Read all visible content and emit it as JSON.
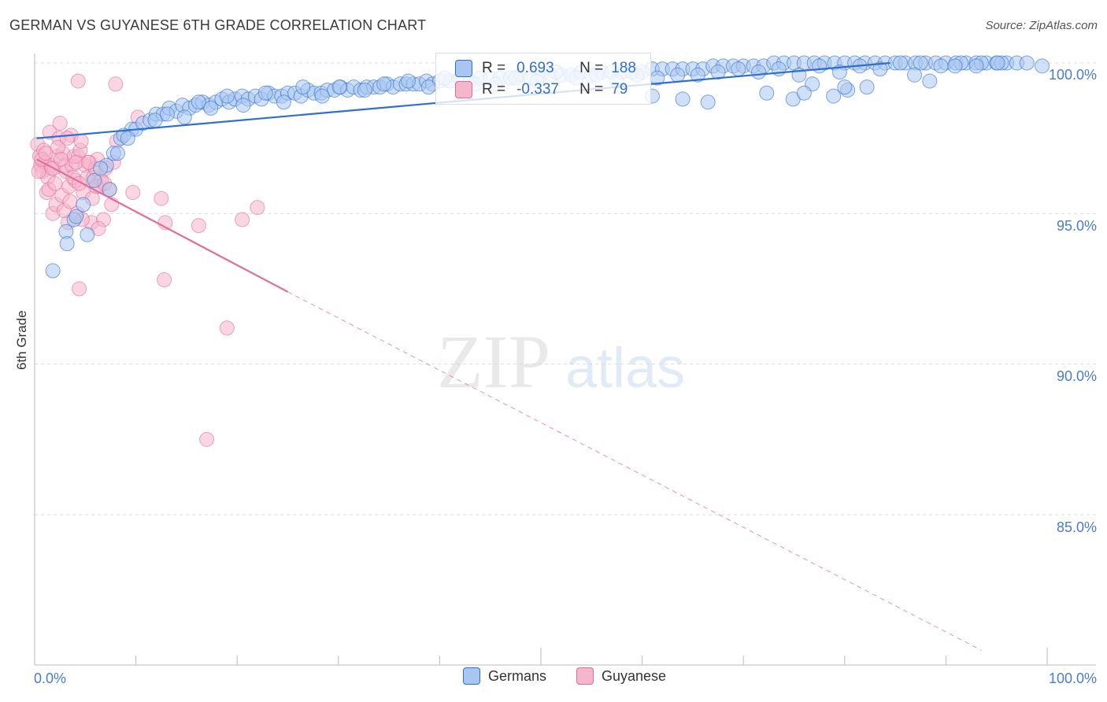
{
  "title": "GERMAN VS GUYANESE 6TH GRADE CORRELATION CHART",
  "source": "Source: ZipAtlas.com",
  "watermark": {
    "zip": "ZIP",
    "atlas": "atlas"
  },
  "colors": {
    "blue": "#2f6fd1",
    "blue_fill": "#a9c6f0",
    "pink": "#e06c99",
    "pink_fill": "#f5b5ca",
    "axis_text": "#4a7bd0",
    "grid": "#dddddd"
  },
  "legend_inset": {
    "rows": [
      {
        "r_label": "R =",
        "r_value": "0.693",
        "n_label": "N =",
        "n_value": "188"
      },
      {
        "r_label": "R =",
        "r_value": "-0.337",
        "n_label": "N =",
        "n_value": "79"
      }
    ]
  },
  "legend": {
    "items": [
      "Germans",
      "Guyanese"
    ]
  },
  "chart_data": {
    "type": "scatter",
    "title": "GERMAN VS GUYANESE 6TH GRADE CORRELATION CHART",
    "xlabel": "",
    "ylabel": "6th Grade",
    "xlim": [
      0,
      100
    ],
    "ylim": [
      80.5,
      100.8
    ],
    "x_tick_labels": [
      "0.0%",
      "100.0%"
    ],
    "y_ticks": [
      85,
      90,
      95,
      100
    ],
    "y_tick_labels": [
      "85.0%",
      "90.0%",
      "95.0%",
      "100.0%"
    ],
    "grid": true,
    "legend_position": "bottom-center",
    "series": [
      {
        "name": "Germans",
        "R": 0.693,
        "N": 188,
        "trend": {
          "x": [
            0.2,
            84.5
          ],
          "y": [
            97.5,
            100.0
          ]
        },
        "x": [
          1.8,
          3.1,
          3.9,
          4.1,
          5.9,
          7.1,
          7.8,
          8.2,
          8.5,
          9.6,
          10.0,
          10.7,
          11.4,
          12.0,
          12.7,
          13.3,
          14.0,
          14.6,
          15.3,
          15.9,
          16.6,
          17.2,
          17.9,
          18.5,
          19.2,
          19.8,
          20.5,
          21.1,
          21.8,
          22.4,
          23.1,
          23.7,
          24.4,
          25.0,
          25.7,
          26.3,
          27.0,
          27.6,
          28.3,
          28.9,
          29.6,
          30.2,
          30.9,
          31.5,
          32.2,
          32.8,
          33.5,
          34.1,
          34.8,
          35.4,
          36.1,
          36.7,
          37.4,
          38.0,
          38.7,
          39.3,
          40.0,
          41.0,
          42.0,
          43.0,
          44.0,
          45.0,
          46.0,
          47.0,
          48.0,
          49.0,
          50.0,
          51.0,
          52.0,
          53.0,
          54.0,
          55.0,
          56.0,
          57.0,
          58.0,
          59.0,
          60.0,
          61.0,
          62.0,
          63.0,
          64.0,
          65.0,
          66.0,
          67.0,
          68.0,
          69.0,
          70.0,
          71.0,
          72.0,
          73.0,
          74.0,
          75.0,
          76.0,
          77.0,
          78.0,
          79.0,
          80.0,
          81.0,
          82.0,
          83.0,
          84.0,
          85.0,
          86.0,
          87.0,
          88.0,
          89.0,
          90.0,
          91.0,
          92.0,
          93.0,
          94.0,
          95.0,
          96.0,
          97.0,
          98.0,
          99.5,
          6.5,
          8.8,
          9.2,
          11.9,
          13.1,
          14.8,
          16.2,
          17.4,
          19.0,
          20.6,
          22.8,
          24.6,
          26.5,
          28.4,
          30.1,
          32.6,
          34.5,
          36.9,
          38.9,
          40.5,
          43.5,
          45.5,
          47.5,
          49.6,
          51.5,
          53.5,
          55.5,
          57.5,
          59.5,
          61.5,
          63.5,
          65.5,
          67.5,
          69.5,
          71.5,
          73.5,
          75.5,
          77.5,
          79.5,
          81.5,
          83.5,
          85.5,
          87.5,
          89.5,
          91.5,
          93.5,
          95.5,
          72.3,
          74.9,
          76.8,
          78.9,
          80.3,
          82.2,
          86.9,
          88.4,
          90.9,
          93.0,
          95.1,
          3.2,
          4.8,
          5.2,
          7.4,
          76.0,
          80.0,
          61.0,
          64.0,
          66.5
        ],
        "y": [
          93.1,
          94.4,
          94.8,
          94.9,
          96.1,
          96.6,
          97.0,
          97.0,
          97.5,
          97.8,
          97.8,
          98.0,
          98.1,
          98.3,
          98.3,
          98.5,
          98.4,
          98.6,
          98.5,
          98.6,
          98.7,
          98.6,
          98.7,
          98.8,
          98.7,
          98.8,
          98.9,
          98.8,
          98.9,
          98.8,
          99.0,
          98.9,
          98.9,
          99.0,
          99.0,
          98.9,
          99.1,
          99.0,
          99.0,
          99.1,
          99.1,
          99.2,
          99.1,
          99.2,
          99.1,
          99.2,
          99.2,
          99.2,
          99.3,
          99.2,
          99.3,
          99.3,
          99.3,
          99.3,
          99.4,
          99.3,
          99.4,
          99.4,
          99.5,
          99.4,
          99.5,
          99.5,
          99.5,
          99.5,
          99.6,
          99.5,
          99.6,
          99.6,
          99.6,
          99.6,
          99.7,
          99.6,
          99.7,
          99.7,
          99.7,
          99.7,
          99.7,
          99.8,
          99.8,
          99.8,
          99.8,
          99.8,
          99.8,
          99.9,
          99.9,
          99.9,
          99.9,
          99.9,
          99.9,
          100.0,
          100.0,
          100.0,
          100.0,
          100.0,
          100.0,
          100.0,
          100.0,
          100.0,
          100.0,
          100.0,
          100.0,
          100.0,
          100.0,
          100.0,
          100.0,
          100.0,
          100.0,
          100.0,
          100.0,
          100.0,
          100.0,
          100.0,
          100.0,
          100.0,
          100.0,
          99.9,
          96.5,
          97.6,
          97.5,
          98.1,
          98.3,
          98.2,
          98.7,
          98.5,
          98.9,
          98.6,
          99.0,
          98.7,
          99.2,
          98.9,
          99.2,
          99.1,
          99.3,
          99.4,
          99.2,
          99.5,
          99.3,
          99.3,
          99.5,
          99.4,
          99.7,
          99.5,
          99.6,
          99.4,
          99.6,
          99.5,
          99.6,
          99.6,
          99.7,
          99.8,
          99.7,
          99.8,
          99.6,
          99.9,
          99.7,
          99.9,
          99.8,
          100.0,
          100.0,
          99.9,
          100.0,
          100.0,
          100.0,
          99.0,
          98.8,
          99.3,
          98.9,
          99.1,
          99.2,
          99.6,
          99.4,
          99.9,
          99.9,
          100.0,
          94.0,
          95.3,
          94.3,
          95.8,
          99.0,
          99.2,
          98.9,
          98.8,
          98.7
        ]
      },
      {
        "name": "Guyanese",
        "R": -0.337,
        "N": 79,
        "trend": {
          "x": [
            0.2,
            25.0
          ],
          "y": [
            96.8,
            92.4
          ],
          "extension": {
            "x": [
              25.0,
              93.5
            ],
            "y": [
              92.4,
              80.5
            ]
          }
        },
        "x": [
          0.3,
          0.5,
          0.6,
          0.8,
          0.9,
          1.0,
          1.2,
          1.3,
          1.5,
          1.6,
          1.8,
          1.9,
          2.1,
          2.2,
          2.4,
          2.5,
          2.7,
          2.8,
          3.0,
          3.1,
          3.3,
          3.4,
          3.6,
          3.7,
          3.9,
          4.0,
          4.2,
          4.3,
          4.5,
          4.6,
          4.8,
          5.0,
          5.2,
          5.4,
          5.6,
          5.8,
          6.0,
          6.2,
          6.4,
          6.6,
          6.8,
          7.0,
          7.4,
          7.8,
          8.1,
          0.4,
          0.7,
          1.1,
          1.4,
          1.7,
          2.0,
          2.3,
          2.6,
          2.9,
          3.2,
          3.5,
          3.8,
          4.1,
          4.4,
          4.7,
          5.3,
          5.7,
          6.1,
          6.3,
          6.9,
          7.6,
          9.7,
          12.5,
          12.9,
          16.2,
          20.5,
          22.0,
          4.3,
          8.0,
          10.2,
          12.8,
          4.4,
          17.0,
          19.0
        ],
        "y": [
          97.3,
          96.9,
          96.6,
          96.4,
          97.1,
          96.7,
          95.7,
          96.2,
          97.7,
          96.6,
          95.0,
          96.5,
          95.3,
          96.9,
          97.5,
          98.0,
          95.6,
          97.0,
          96.6,
          96.4,
          94.7,
          95.9,
          97.6,
          96.6,
          96.9,
          96.1,
          95.0,
          96.9,
          97.1,
          97.4,
          95.7,
          96.6,
          96.2,
          96.7,
          94.7,
          96.2,
          96.5,
          96.8,
          95.9,
          96.1,
          94.8,
          96.5,
          95.8,
          96.7,
          97.4,
          96.4,
          96.8,
          97.0,
          95.8,
          96.5,
          96.0,
          97.2,
          96.8,
          95.1,
          97.5,
          95.4,
          96.2,
          96.7,
          96.0,
          94.8,
          96.7,
          95.5,
          95.9,
          94.5,
          96.0,
          95.3,
          95.7,
          95.5,
          94.7,
          94.6,
          94.8,
          95.2,
          99.4,
          99.3,
          98.2,
          92.8,
          92.5,
          87.5,
          91.2
        ]
      }
    ]
  }
}
